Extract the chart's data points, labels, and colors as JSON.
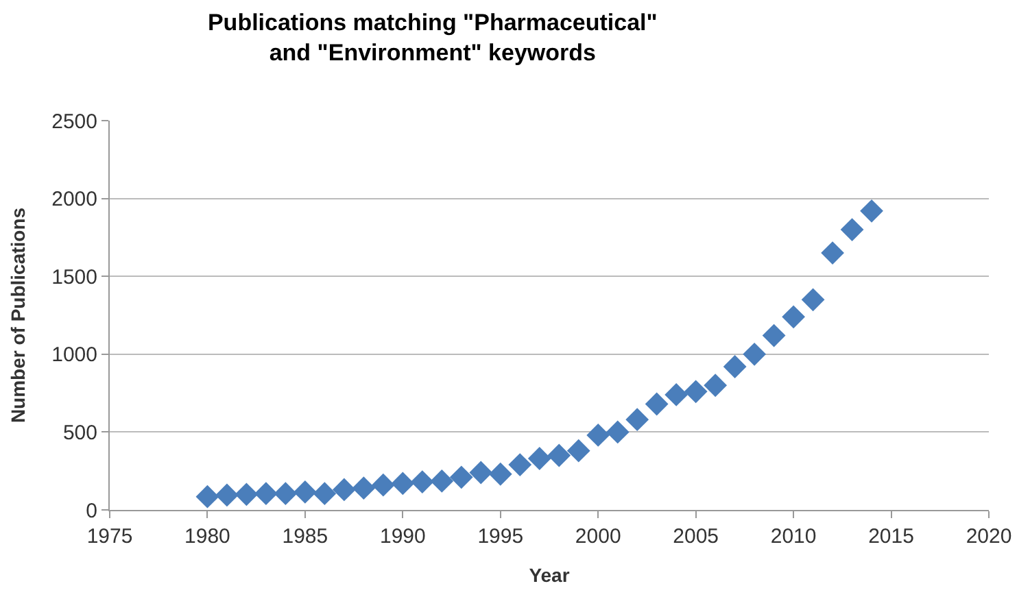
{
  "chart_data": {
    "type": "scatter",
    "title": "Publications matching \"Pharmaceutical\"\nand \"Environment\" keywords",
    "xlabel": "Year",
    "ylabel": "Number of Publications",
    "x": [
      1980,
      1981,
      1982,
      1983,
      1984,
      1985,
      1986,
      1987,
      1988,
      1989,
      1990,
      1991,
      1992,
      1993,
      1994,
      1995,
      1996,
      1997,
      1998,
      1999,
      2000,
      2001,
      2002,
      2003,
      2004,
      2005,
      2006,
      2007,
      2008,
      2009,
      2010,
      2011,
      2012,
      2013,
      2014
    ],
    "series": [
      {
        "color": "#4a7ebb",
        "values": [
          85,
          95,
          100,
          105,
          105,
          115,
          105,
          130,
          140,
          160,
          170,
          180,
          185,
          210,
          240,
          230,
          290,
          330,
          350,
          380,
          480,
          500,
          580,
          680,
          740,
          760,
          800,
          920,
          1000,
          1120,
          1240,
          1350,
          1650,
          1800,
          1920
        ]
      }
    ],
    "xlim": [
      1975,
      2020
    ],
    "xticks": [
      1975,
      1980,
      1985,
      1990,
      1995,
      2000,
      2005,
      2010,
      2015,
      2020
    ],
    "ylim": [
      0,
      2500
    ],
    "yticks": [
      0,
      500,
      1000,
      1500,
      2000,
      2500
    ],
    "grid": "y",
    "marker": "diamond",
    "legend": false
  }
}
